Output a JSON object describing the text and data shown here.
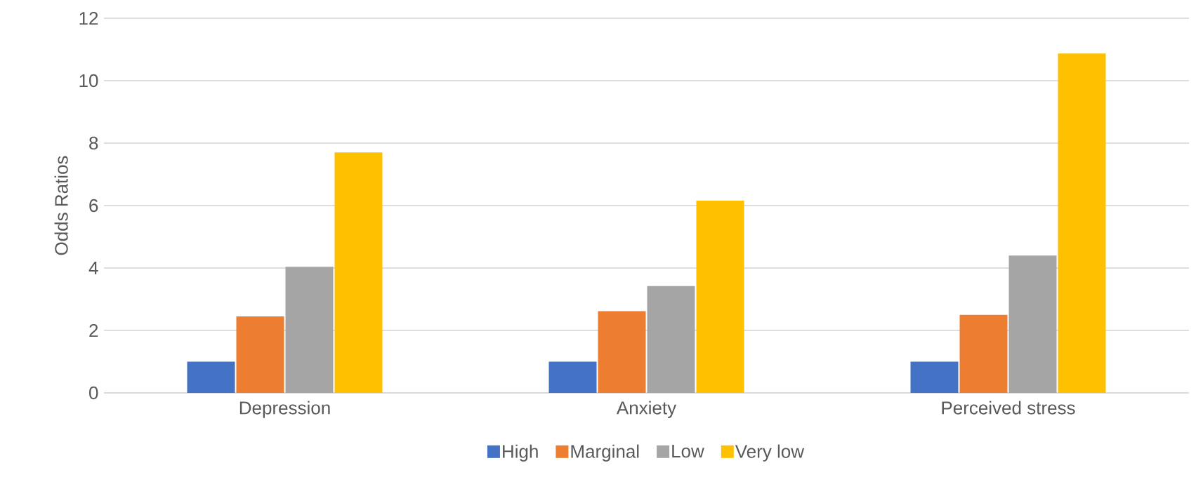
{
  "chart_data": {
    "type": "bar",
    "ylabel": "Odds Ratios",
    "categories": [
      "Depression",
      "Anxiety",
      "Perceived stress"
    ],
    "series": [
      {
        "name": "High",
        "color": "#4472c4",
        "values": [
          1.0,
          1.0,
          1.0
        ]
      },
      {
        "name": "Marginal",
        "color": "#ed7d31",
        "values": [
          2.45,
          2.62,
          2.5
        ]
      },
      {
        "name": "Low",
        "color": "#a5a5a5",
        "values": [
          4.04,
          3.42,
          4.4
        ]
      },
      {
        "name": "Very low",
        "color": "#ffc000",
        "values": [
          7.7,
          6.16,
          10.87
        ]
      }
    ],
    "ylim": [
      0,
      12
    ],
    "yticks": [
      0,
      2,
      4,
      6,
      8,
      10,
      12
    ],
    "grid": "y",
    "legend": "bottom"
  }
}
